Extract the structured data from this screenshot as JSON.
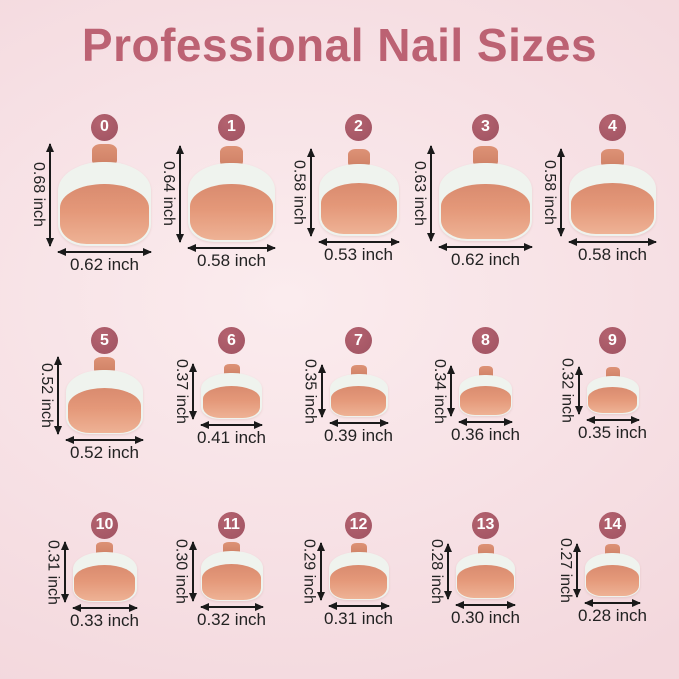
{
  "title": "Professional Nail Sizes",
  "unit": "inch",
  "colors": {
    "page_bg": "#f7e1e5",
    "page_bg_light": "#fbecee",
    "page_bg_dark": "#f3d8dd",
    "title_color": "#bc6273",
    "badge_bg": "#9f5362",
    "badge_bg_light": "#b4626f",
    "badge_text": "#ffffff",
    "nail_tab": "#cf8166",
    "nail_tab_light": "#dd9276",
    "nail_tip_white": "#eff3ee",
    "nail_bed_dark": "#d98b6f",
    "nail_bed_mid": "#e49879",
    "nail_bed_light": "#eeb295",
    "dimension_text": "#222222",
    "arrow": "#1a1a1a"
  },
  "rows": [
    {
      "cells": [
        {
          "size": "0",
          "height": "0.68 inch",
          "width": "0.62 inch"
        },
        {
          "size": "1",
          "height": "0.64 inch",
          "width": "0.58 inch"
        },
        {
          "size": "2",
          "height": "0.58 inch",
          "width": "0.53 inch"
        },
        {
          "size": "3",
          "height": "0.63 inch",
          "width": "0.62 inch"
        },
        {
          "size": "4",
          "height": "0.58 inch",
          "width": "0.58 inch"
        }
      ]
    },
    {
      "cells": [
        {
          "size": "5",
          "height": "0.52 inch",
          "width": "0.52 inch"
        },
        {
          "size": "6",
          "height": "0.37 inch",
          "width": "0.41 inch"
        },
        {
          "size": "7",
          "height": "0.35 inch",
          "width": "0.39 inch"
        },
        {
          "size": "8",
          "height": "0.34 inch",
          "width": "0.36 inch"
        },
        {
          "size": "9",
          "height": "0.32 inch",
          "width": "0.35 inch"
        }
      ]
    },
    {
      "cells": [
        {
          "size": "10",
          "height": "0.31 inch",
          "width": "0.33 inch"
        },
        {
          "size": "11",
          "height": "0.30 inch",
          "width": "0.32 inch"
        },
        {
          "size": "12",
          "height": "0.29 inch",
          "width": "0.31 inch"
        },
        {
          "size": "13",
          "height": "0.28 inch",
          "width": "0.30 inch"
        },
        {
          "size": "14",
          "height": "0.27 inch",
          "width": "0.28 inch"
        }
      ]
    }
  ]
}
